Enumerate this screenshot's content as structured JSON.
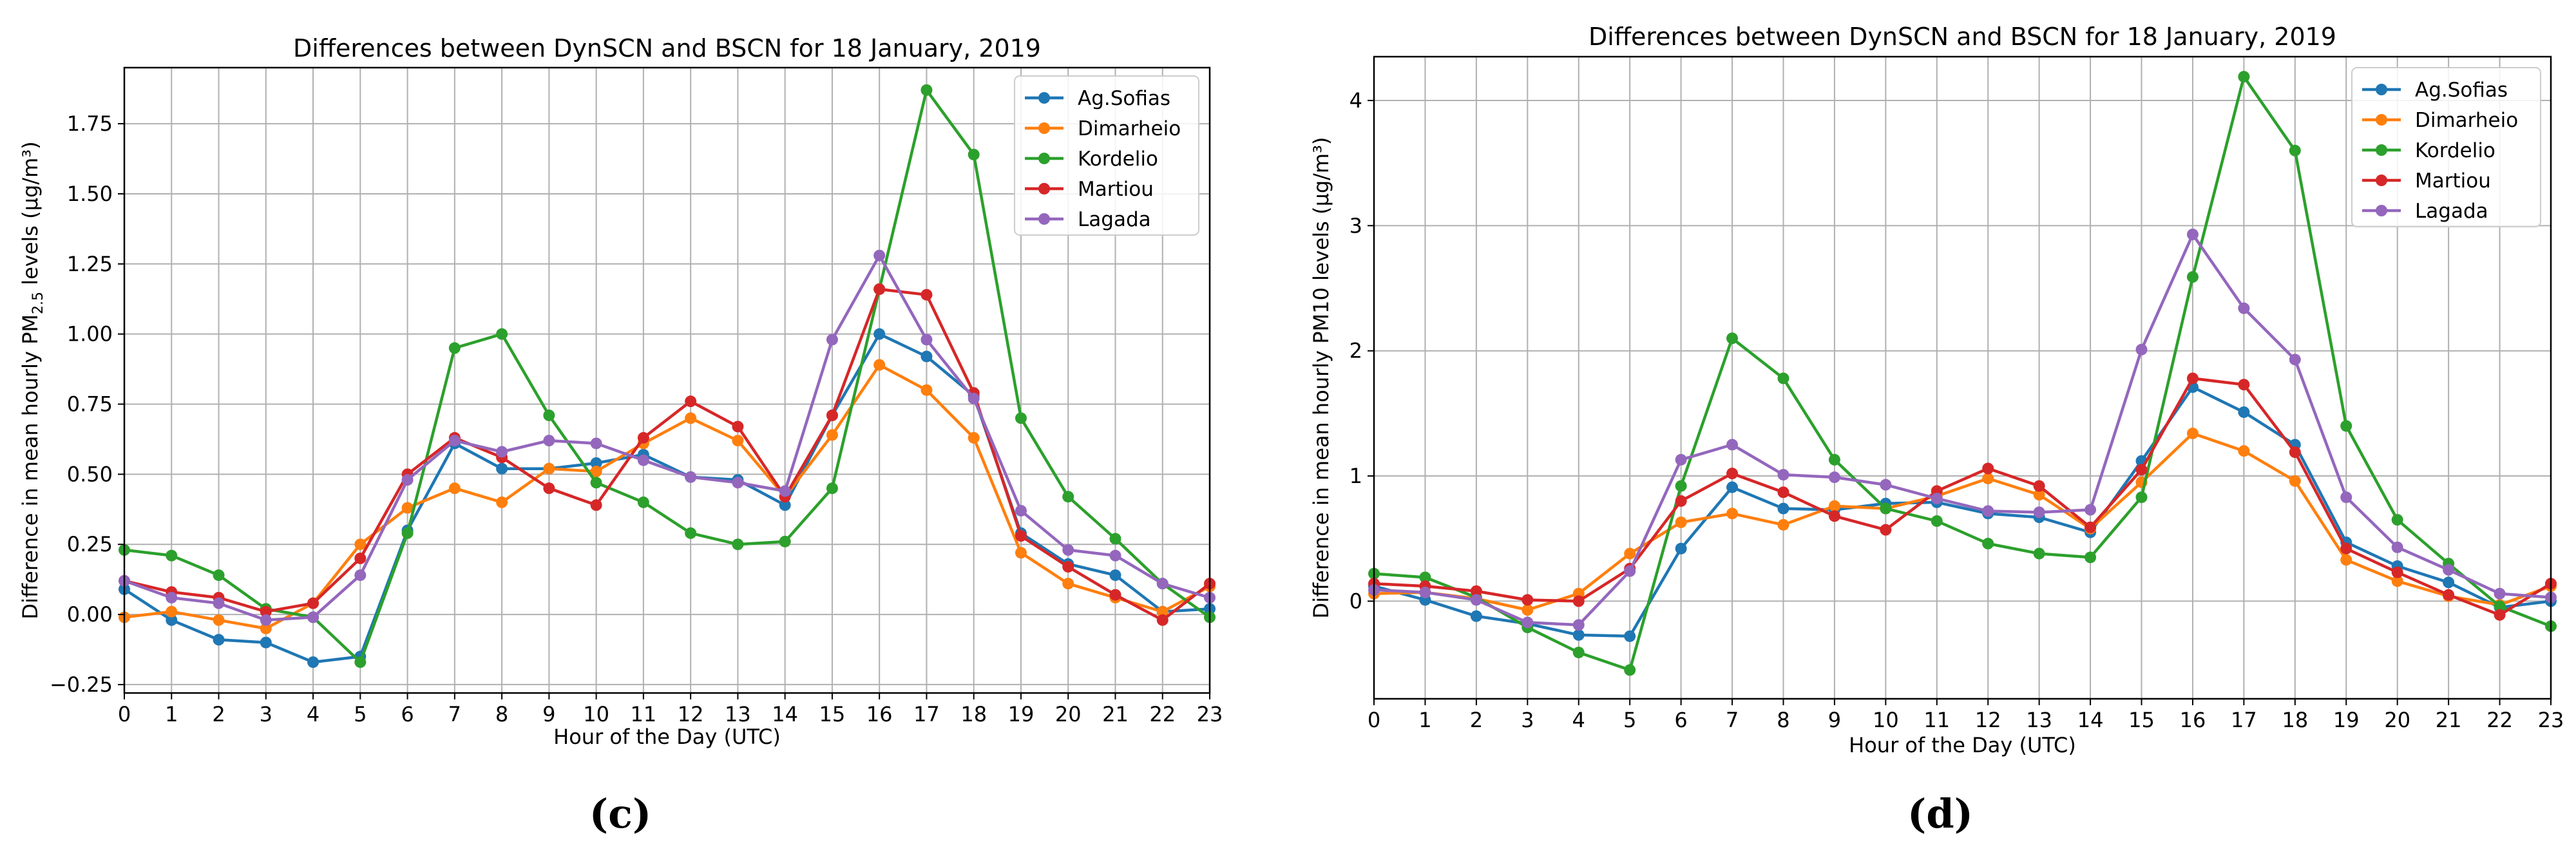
{
  "chart_data": [
    {
      "type": "line",
      "title": "Differences between DynSCN and BSCN for 18 January, 2019",
      "xlabel": "Hour of the Day (UTC)",
      "ylabel_prefix": "Difference in mean hourly PM",
      "ylabel_sub": "2.5",
      "ylabel_suffix": " levels (μg/m³)",
      "panel_label": "(c)",
      "xlim": [
        0,
        23
      ],
      "ylim": [
        -0.28,
        1.95
      ],
      "x_ticks": [
        0,
        1,
        2,
        3,
        4,
        5,
        6,
        7,
        8,
        9,
        10,
        11,
        12,
        13,
        14,
        15,
        16,
        17,
        18,
        19,
        20,
        21,
        22,
        23
      ],
      "y_ticks": [
        -0.25,
        0.0,
        0.25,
        0.5,
        0.75,
        1.0,
        1.25,
        1.5,
        1.75
      ],
      "y_tick_labels": [
        "−0.25",
        "0.00",
        "0.25",
        "0.50",
        "0.75",
        "1.00",
        "1.25",
        "1.50",
        "1.75"
      ],
      "grid": true,
      "legend": "top-right",
      "x": [
        0,
        1,
        2,
        3,
        4,
        5,
        6,
        7,
        8,
        9,
        10,
        11,
        12,
        13,
        14,
        15,
        16,
        17,
        18,
        19,
        20,
        21,
        22,
        23
      ],
      "series": [
        {
          "name": "Ag.Sofias",
          "color": "#1f77b4",
          "values": [
            0.09,
            -0.02,
            -0.09,
            -0.1,
            -0.17,
            -0.15,
            0.3,
            0.61,
            0.52,
            0.52,
            0.54,
            0.57,
            0.49,
            0.48,
            0.39,
            0.71,
            1.0,
            0.92,
            0.78,
            0.29,
            0.18,
            0.14,
            0.01,
            0.02
          ]
        },
        {
          "name": "Dimarheio",
          "color": "#ff7f0e",
          "values": [
            -0.01,
            0.01,
            -0.02,
            -0.05,
            0.04,
            0.25,
            0.38,
            0.45,
            0.4,
            0.52,
            0.51,
            0.61,
            0.7,
            0.62,
            0.42,
            0.64,
            0.89,
            0.8,
            0.63,
            0.22,
            0.11,
            0.06,
            0.01,
            0.1
          ]
        },
        {
          "name": "Kordelio",
          "color": "#2ca02c",
          "values": [
            0.23,
            0.21,
            0.14,
            0.02,
            -0.01,
            -0.17,
            0.29,
            0.95,
            1.0,
            0.71,
            0.47,
            0.4,
            0.29,
            0.25,
            0.26,
            0.45,
            1.16,
            1.87,
            1.64,
            0.7,
            0.42,
            0.27,
            0.11,
            -0.01
          ]
        },
        {
          "name": "Martiou",
          "color": "#d62728",
          "values": [
            0.12,
            0.08,
            0.06,
            0.01,
            0.04,
            0.2,
            0.5,
            0.63,
            0.56,
            0.45,
            0.39,
            0.63,
            0.76,
            0.67,
            0.42,
            0.71,
            1.16,
            1.14,
            0.79,
            0.28,
            0.17,
            0.07,
            -0.02,
            0.11
          ]
        },
        {
          "name": "Lagada",
          "color": "#9467bd",
          "values": [
            0.12,
            0.06,
            0.04,
            -0.02,
            -0.01,
            0.14,
            0.48,
            0.62,
            0.58,
            0.62,
            0.61,
            0.55,
            0.49,
            0.47,
            0.44,
            0.98,
            1.28,
            0.98,
            0.77,
            0.37,
            0.23,
            0.21,
            0.11,
            0.06
          ]
        }
      ]
    },
    {
      "type": "line",
      "title": "Differences between DynSCN and BSCN for 18 January, 2019",
      "xlabel": "Hour of the Day (UTC)",
      "ylabel": "Difference in mean hourly PM10 levels (μg/m³)",
      "panel_label": "(d)",
      "xlim": [
        0,
        23
      ],
      "ylim": [
        -0.78,
        4.35
      ],
      "x_ticks": [
        0,
        1,
        2,
        3,
        4,
        5,
        6,
        7,
        8,
        9,
        10,
        11,
        12,
        13,
        14,
        15,
        16,
        17,
        18,
        19,
        20,
        21,
        22,
        23
      ],
      "y_ticks": [
        0,
        1,
        2,
        3,
        4
      ],
      "y_tick_labels": [
        "0",
        "1",
        "2",
        "3",
        "4"
      ],
      "grid": true,
      "legend": "top-right",
      "x": [
        0,
        1,
        2,
        3,
        4,
        5,
        6,
        7,
        8,
        9,
        10,
        11,
        12,
        13,
        14,
        15,
        16,
        17,
        18,
        19,
        20,
        21,
        22,
        23
      ],
      "series": [
        {
          "name": "Ag.Sofias",
          "color": "#1f77b4",
          "values": [
            0.12,
            0.01,
            -0.12,
            -0.18,
            -0.27,
            -0.28,
            0.42,
            0.91,
            0.74,
            0.73,
            0.78,
            0.79,
            0.7,
            0.67,
            0.55,
            1.12,
            1.71,
            1.51,
            1.25,
            0.47,
            0.28,
            0.15,
            -0.05,
            0.0
          ]
        },
        {
          "name": "Dimarheio",
          "color": "#ff7f0e",
          "values": [
            0.06,
            0.07,
            0.02,
            -0.07,
            0.06,
            0.38,
            0.63,
            0.7,
            0.61,
            0.76,
            0.74,
            0.84,
            0.98,
            0.85,
            0.58,
            0.95,
            1.34,
            1.2,
            0.96,
            0.33,
            0.16,
            0.04,
            -0.03,
            0.12
          ]
        },
        {
          "name": "Kordelio",
          "color": "#2ca02c",
          "values": [
            0.22,
            0.19,
            0.03,
            -0.21,
            -0.41,
            -0.55,
            0.92,
            2.1,
            1.78,
            1.13,
            0.74,
            0.64,
            0.46,
            0.38,
            0.35,
            0.83,
            2.59,
            4.19,
            3.6,
            1.4,
            0.65,
            0.3,
            -0.04,
            -0.2
          ]
        },
        {
          "name": "Martiou",
          "color": "#d62728",
          "values": [
            0.14,
            0.12,
            0.08,
            0.01,
            0.0,
            0.26,
            0.8,
            1.02,
            0.87,
            0.68,
            0.57,
            0.88,
            1.06,
            0.92,
            0.59,
            1.05,
            1.78,
            1.73,
            1.19,
            0.42,
            0.23,
            0.05,
            -0.11,
            0.14
          ]
        },
        {
          "name": "Lagada",
          "color": "#9467bd",
          "values": [
            0.09,
            0.07,
            0.01,
            -0.17,
            -0.19,
            0.24,
            1.13,
            1.25,
            1.01,
            0.99,
            0.93,
            0.82,
            0.72,
            0.71,
            0.73,
            2.01,
            2.93,
            2.34,
            1.93,
            0.83,
            0.43,
            0.25,
            0.06,
            0.03
          ]
        }
      ]
    }
  ]
}
